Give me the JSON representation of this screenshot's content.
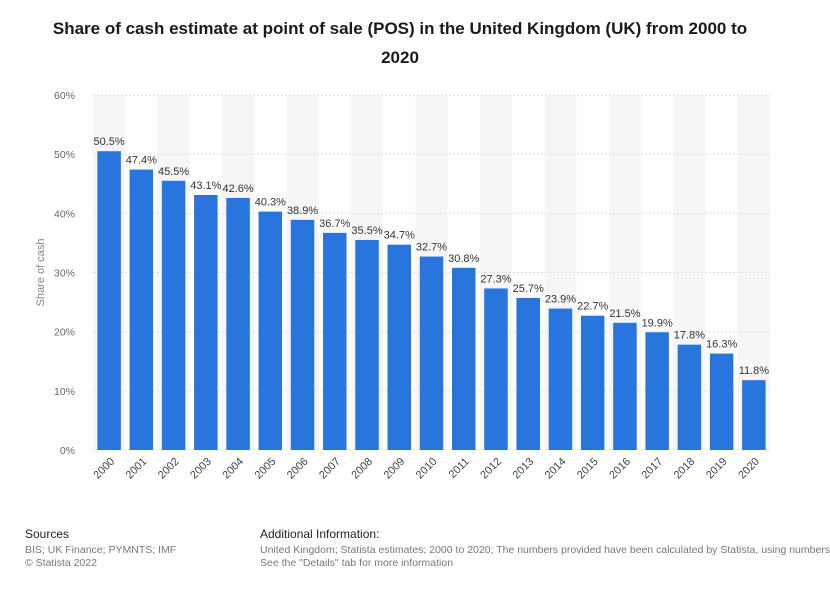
{
  "chart_data": {
    "type": "bar",
    "title": "Share of cash estimate at point of sale (POS) in the United Kingdom (UK) from 2000 to 2020",
    "xlabel": "",
    "ylabel": "Share of cash",
    "categories": [
      "2000",
      "2001",
      "2002",
      "2003",
      "2004",
      "2005",
      "2006",
      "2007",
      "2008",
      "2009",
      "2010",
      "2011",
      "2012",
      "2013",
      "2014",
      "2015",
      "2016",
      "2017",
      "2018",
      "2019",
      "2020"
    ],
    "values": [
      50.5,
      47.4,
      45.5,
      43.1,
      42.6,
      40.3,
      38.9,
      36.7,
      35.5,
      34.7,
      32.7,
      30.8,
      27.3,
      25.7,
      23.9,
      22.7,
      21.5,
      19.9,
      17.8,
      16.3,
      11.8
    ],
    "value_labels": [
      "50.5%",
      "47.4%",
      "45.5%",
      "43.1%",
      "42.6%",
      "40.3%",
      "38.9%",
      "36.7%",
      "35.5%",
      "34.7%",
      "32.7%",
      "30.8%",
      "27.3%",
      "25.7%",
      "23.9%",
      "22.7%",
      "21.5%",
      "19.9%",
      "17.8%",
      "16.3%",
      "11.8%"
    ],
    "ylim": [
      0,
      60
    ],
    "yticks": [
      0,
      10,
      20,
      30,
      40,
      50,
      60
    ],
    "ytick_labels": [
      "0%",
      "10%",
      "20%",
      "30%",
      "40%",
      "50%",
      "60%"
    ],
    "grid": true,
    "bar_color": "#2876dd"
  },
  "footer": {
    "sources_heading": "Sources",
    "sources_line1": "BIS; UK Finance; PYMNTS; IMF",
    "sources_line2": "© Statista 2022",
    "info_heading": "Additional Information:",
    "info_line1": "United Kingdom; Statista estimates; 2000 to 2020; The numbers provided have been calculated by Statista, using numbers",
    "info_line2": "See the \"Details\" tab for more information"
  }
}
